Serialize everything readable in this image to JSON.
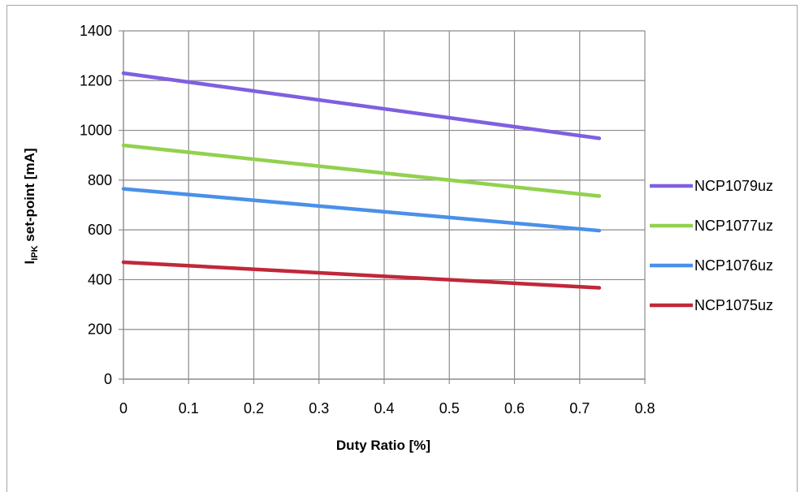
{
  "chart_data": {
    "type": "line",
    "xlabel": "Duty Ratio [%]",
    "ylabel": {
      "main": "I",
      "sub": "IPK",
      "rest": " set-point [mA]"
    },
    "xlim": [
      0,
      0.8
    ],
    "ylim": [
      0,
      1400
    ],
    "xticks": [
      "0",
      "0.1",
      "0.2",
      "0.3",
      "0.4",
      "0.5",
      "0.6",
      "0.7",
      "0.8"
    ],
    "yticks": [
      "0",
      "200",
      "400",
      "600",
      "800",
      "1000",
      "1200",
      "1400"
    ],
    "grid": true,
    "legend_position": "right",
    "x": [
      0,
      0.73
    ],
    "series": [
      {
        "name": "NCP1079uz",
        "values": [
          1230,
          968
        ],
        "color": "#7f5fe0"
      },
      {
        "name": "NCP1077uz",
        "values": [
          940,
          736
        ],
        "color": "#92d14f"
      },
      {
        "name": "NCP1076uz",
        "values": [
          765,
          597
        ],
        "color": "#4a90e8"
      },
      {
        "name": "NCP1075uz",
        "values": [
          470,
          367
        ],
        "color": "#c0283a"
      }
    ]
  }
}
